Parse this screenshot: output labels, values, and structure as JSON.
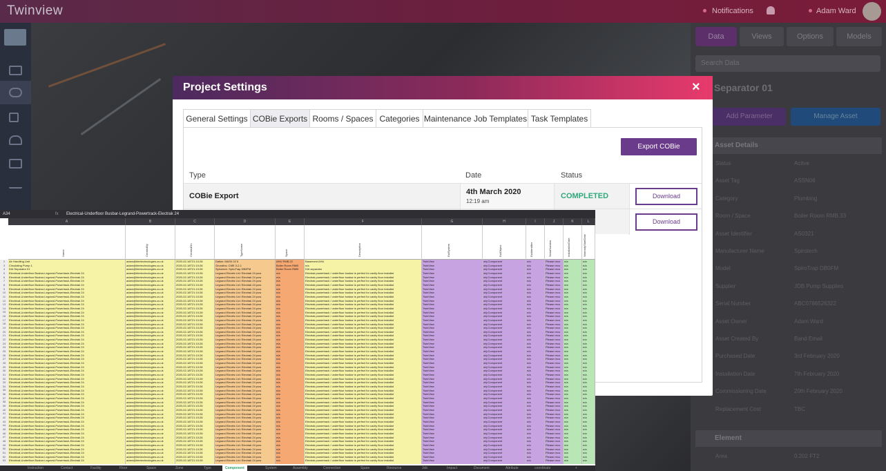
{
  "app": {
    "logo": "Twinview",
    "notifications": "Notifications",
    "user": "Adam Ward"
  },
  "modal": {
    "title": "Project Settings",
    "close": "×",
    "tabs": [
      "General Settings",
      "COBie Exports",
      "Rooms / Spaces",
      "Categories",
      "Maintenance Job Templates",
      "Task Templates"
    ],
    "export_button": "Export COBie",
    "columns": {
      "type": "Type",
      "date": "Date",
      "status": "Status"
    },
    "rows": [
      {
        "type": "COBie Export",
        "date": "4th March 2020",
        "time": "12:19 am",
        "status": "COMPLETED",
        "action": "Download"
      },
      {
        "type": "",
        "date": "",
        "time": "",
        "status": "ED",
        "action": "Download"
      }
    ]
  },
  "right_panel": {
    "tabs": [
      "Data",
      "Views",
      "Options",
      "Models"
    ],
    "search_placeholder": "Search Data",
    "title": "Separator 01",
    "add_param": "Add Parameter",
    "manage_asset": "Manage Asset",
    "section1": "Asset Details",
    "rows": [
      {
        "k": "Status",
        "v": "Active"
      },
      {
        "k": "Asset Tag",
        "v": "ASSN06"
      },
      {
        "k": "Category",
        "v": "Plumbing"
      },
      {
        "k": "Room / Space",
        "v": "Boiler Room RMB.33"
      },
      {
        "k": "Asset Identifier",
        "v": "AS0321"
      },
      {
        "k": "Manufacturer Name",
        "v": "Spirotech"
      },
      {
        "k": "Model",
        "v": "SpiroTrap DB0FM"
      },
      {
        "k": "Supplier",
        "v": "JDB Pump Supplies"
      },
      {
        "k": "Serial Number",
        "v": "ABC0786526322"
      },
      {
        "k": "Asset Owner",
        "v": "Adam Ward"
      },
      {
        "k": "Asset Created By",
        "v": "Band Email"
      },
      {
        "k": "Purchased Date",
        "v": "3rd February 2020"
      },
      {
        "k": "Installation Date",
        "v": "7th February 2020"
      },
      {
        "k": "Commissioning Date",
        "v": "20th February 2020"
      },
      {
        "k": "Replacement Cost",
        "v": "TBC"
      }
    ],
    "section2": "Element",
    "rows2": [
      {
        "k": "Area",
        "v": "0.202 FT2"
      }
    ]
  },
  "sheet": {
    "cell_ref": "A34",
    "fx": "fx",
    "formula": "Electrical-Underfloor Busbar-Legrand-Powertrack-Electrak 24",
    "columns": [
      "A",
      "B",
      "C",
      "D",
      "E",
      "F",
      "G",
      "H",
      "I",
      "J",
      "K",
      "L"
    ],
    "headers": [
      "Name",
      "CreatedBy",
      "CreatedOn",
      "TypeName",
      "Space",
      "Description",
      "ExtSystem",
      "ExtObject",
      "ExtIdentifier",
      "SerialNumber",
      "InstallationDate",
      "WarrantyStartDate"
    ],
    "name_rows": [
      "Air Handling Unit",
      "Circulating Pump 1",
      "Dirt Separator 01",
      "Electrical-Underfloor Busbar-Legrand-Powertrack-Electrak 24"
    ],
    "created_by": "adam@bimtechnologies.co.uk",
    "created_on": "2020-02-18T21:10:28",
    "type_rows": [
      "Daikin: MAS0 02 5",
      "Grundfos: CME 3-2-1",
      "Spirotech: SpiroTrap DB0FM",
      "Legrand Electric Ltd: Electrak 24 pow"
    ],
    "space_rows": [
      "AHU RMB.22",
      "Boiler Room RMB",
      "Boiler Room RMB",
      "n/a"
    ],
    "desc_rows": [
      "Basement AHU",
      "n/a",
      "Dirt separator",
      "Electrak powertrack / underfloor busbar is perfect for cavity floor installat"
    ],
    "ext_system": "TwinView",
    "ext_object": "obj:Component",
    "serial": "Please reco",
    "na": "n/a",
    "sheet_tabs": [
      "Instruction",
      "Contact",
      "Facility",
      "Floor",
      "Space",
      "Zone",
      "Type",
      "Component",
      "System",
      "Assembly",
      "Connection",
      "Spare",
      "Resource",
      "Job",
      "Impact",
      "Document",
      "Attribute",
      "coordinate",
      "+"
    ],
    "active_tab": "Component"
  },
  "colors": {
    "accent": "#6a3b8a",
    "completed": "#2ea87b",
    "header_gradient_end": "#e83a6c"
  }
}
